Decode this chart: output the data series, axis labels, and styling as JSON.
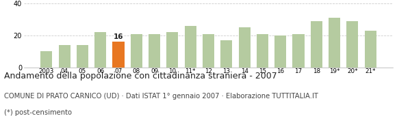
{
  "categories": [
    "2003",
    "04",
    "05",
    "06",
    "07",
    "08",
    "09",
    "10",
    "11*",
    "12",
    "13",
    "14",
    "15",
    "16",
    "17",
    "18",
    "19*",
    "20*",
    "21*"
  ],
  "values": [
    10,
    14,
    14,
    22,
    16,
    21,
    21,
    22,
    26,
    21,
    17,
    25,
    21,
    20,
    21,
    29,
    31,
    29,
    23
  ],
  "highlight_index": 4,
  "highlight_value_label": "16",
  "bar_color_normal": "#b5cba0",
  "bar_color_highlight": "#e87722",
  "background_color": "#ffffff",
  "grid_color": "#cccccc",
  "ylim": [
    0,
    40
  ],
  "yticks": [
    0,
    20,
    40
  ],
  "title": "Andamento della popolazione con cittadinanza straniera - 2007",
  "subtitle": "COMUNE DI PRATO CARNICO (UD) · Dati ISTAT 1° gennaio 2007 · Elaborazione TUTTITALIA.IT",
  "footnote": "(*) post-censimento",
  "title_fontsize": 9.0,
  "subtitle_fontsize": 7.2,
  "footnote_fontsize": 7.2
}
